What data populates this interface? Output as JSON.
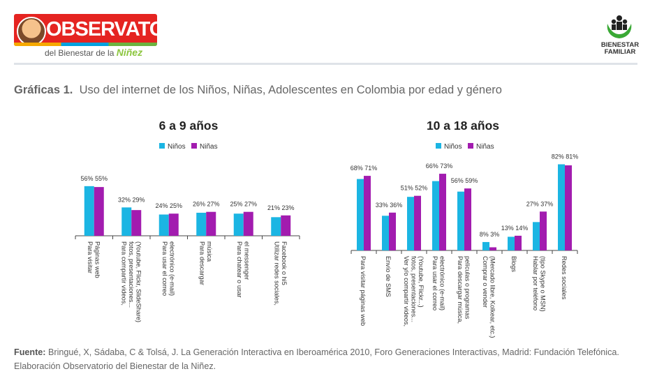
{
  "header": {
    "logo_title": "OBSERVATORIO",
    "logo_sub_prefix": "del Bienestar de la ",
    "logo_sub_emph": "Niñez",
    "right_logo_line1": "BIENESTAR",
    "right_logo_line2": "FAMILIAR"
  },
  "caption": {
    "label": "Gráficas 1.",
    "text": "Uso del internet de los Niños, Niñas,  Adolescentes en Colombia por edad y género"
  },
  "colors": {
    "ninos": "#1bb5e3",
    "ninas": "#a21caf",
    "axis": "#444444"
  },
  "chart_data": [
    {
      "type": "bar",
      "title": "6 a 9 años",
      "series": [
        {
          "name": "Niños",
          "values": [
            56,
            32,
            24,
            26,
            25,
            21
          ]
        },
        {
          "name": "Niñas",
          "values": [
            55,
            29,
            25,
            27,
            27,
            23
          ]
        }
      ],
      "data_labels": [
        [
          "56%",
          "32%",
          "24%",
          "26%",
          "25%",
          "21%"
        ],
        [
          "55%",
          "29%",
          "25%",
          "27%",
          "27%",
          "23%"
        ]
      ],
      "categories": [
        [
          "Para visitar",
          "Páginas web"
        ],
        [
          "Para compartir videos,",
          "fotos, presentaciones...",
          "(Youtube, Flickr, SlideShare)"
        ],
        [
          "Para usar el correo",
          "electrónico (e-mail)"
        ],
        [
          "Para descargar",
          "música"
        ],
        [
          "Para chatear o usar",
          "el messenger"
        ],
        [
          "Utilizar redes sociales,",
          "Facebook o hi5"
        ]
      ],
      "ylim": [
        0,
        85
      ],
      "legend": "top-center",
      "grid": false
    },
    {
      "type": "bar",
      "title": "10 a 18 años",
      "series": [
        {
          "name": "Niños",
          "values": [
            68,
            33,
            51,
            66,
            56,
            8,
            13,
            27,
            82
          ]
        },
        {
          "name": "Niñas",
          "values": [
            71,
            36,
            52,
            73,
            59,
            3,
            14,
            37,
            81
          ]
        }
      ],
      "data_labels": [
        [
          "68%",
          "33%",
          "51%",
          "66%",
          "56%",
          "8%",
          "13%",
          "27%",
          "82%"
        ],
        [
          "71%",
          "36%",
          "52%",
          "73%",
          "59%",
          "3%",
          "14%",
          "37%",
          "81%"
        ]
      ],
      "categories": [
        [
          "Para visitar páginas web"
        ],
        [
          "Envío de SMS"
        ],
        [
          "Ver y/o compartir videos,",
          "fotos, presentaciones...",
          "(Youtube, Flickr...)"
        ],
        [
          "Para usar el correo",
          "electrónico (e-mail)"
        ],
        [
          "Para descargar música,",
          "películas o programas"
        ],
        [
          "Comprar o vender",
          "(Mercado libre, Kolkear, etc.)"
        ],
        [
          "Blogs"
        ],
        [
          "Hablar por teléfono",
          "(tipo Skype o MSN)"
        ],
        [
          "Redes sociales"
        ]
      ],
      "ylim": [
        0,
        85
      ],
      "legend": "top-center",
      "grid": false
    }
  ],
  "source": {
    "label": "Fuente:",
    "text": "Bringué, X, Sádaba, C & Tolsá, J. La Generación Interactiva en Iberoamérica 2010, Foro Generaciones Interactivas, Madrid: Fundación Telefónica. Elaboración Observatorio del Bienestar de la Niñez."
  }
}
